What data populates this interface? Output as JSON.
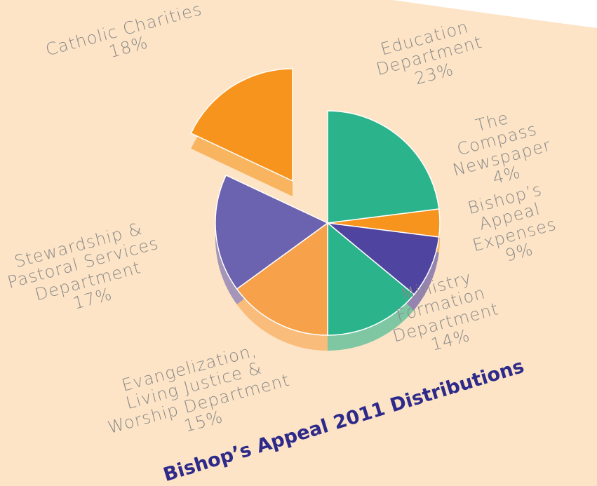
{
  "chart_data": {
    "type": "pie",
    "title": "Bishop’s Appeal 2011 Distributions",
    "categories": [
      "Education\nDepartment",
      "The Compass\nNewspaper",
      "Bishop’s Appeal\nExpenses",
      "Ministry Formation\nDepartment",
      "Evangelization,\nLiving Justice &\nWorship Department",
      "Stewardship &\nPastoral Services\nDepartment",
      "Catholic Charities"
    ],
    "values": [
      23,
      4,
      9,
      14,
      15,
      17,
      18
    ],
    "value_labels": [
      "23%",
      "4%",
      "9%",
      "14%",
      "15%",
      "17%",
      "18%"
    ],
    "colors": [
      "#2bb38c",
      "#f7941d",
      "#4f45a0",
      "#2bb38c",
      "#f7a24a",
      "#6b62b0",
      "#f7941d"
    ]
  }
}
